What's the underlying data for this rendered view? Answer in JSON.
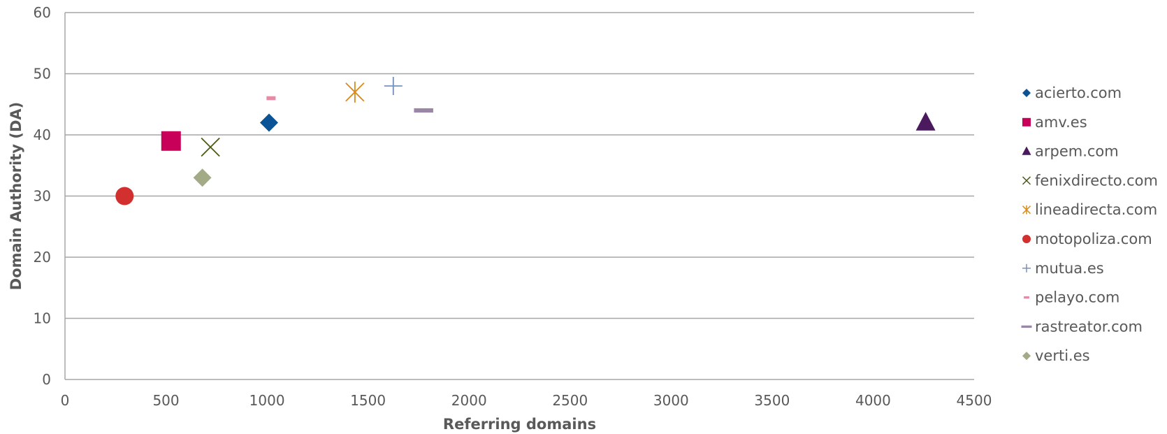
{
  "chart_data": {
    "type": "scatter",
    "title": "",
    "xlabel": "Referring domains",
    "ylabel": "Domain Authority (DA)",
    "xlim": [
      0,
      4500
    ],
    "ylim": [
      0,
      60
    ],
    "xticks": [
      0,
      500,
      1000,
      1500,
      2000,
      2500,
      3000,
      3500,
      4000,
      4500
    ],
    "yticks": [
      0,
      10,
      20,
      30,
      40,
      50,
      60
    ],
    "grid": "horizontal",
    "legend_position": "right",
    "series": [
      {
        "name": "acierto.com",
        "marker": "diamond",
        "color": "#0B5394",
        "x": 1010,
        "y": 42
      },
      {
        "name": "amv.es",
        "marker": "square",
        "color": "#C8005A",
        "x": 525,
        "y": 39
      },
      {
        "name": "arpem.com",
        "marker": "triangle",
        "color": "#4B1A5E",
        "x": 4260,
        "y": 42
      },
      {
        "name": "fenixdirecto.com",
        "marker": "x",
        "color": "#4B5A14",
        "x": 720,
        "y": 38
      },
      {
        "name": "lineadirecta.com",
        "marker": "star",
        "color": "#D98C1A",
        "x": 1435,
        "y": 47
      },
      {
        "name": "motopoliza.com",
        "marker": "circle",
        "color": "#D22F2F",
        "x": 295,
        "y": 30
      },
      {
        "name": "mutua.es",
        "marker": "plus",
        "color": "#7892BE",
        "x": 1625,
        "y": 48
      },
      {
        "name": "pelayo.com",
        "marker": "dash",
        "color": "#E58BA6",
        "x": 1020,
        "y": 46
      },
      {
        "name": "rastreator.com",
        "marker": "bar",
        "color": "#9A86A6",
        "x": 1775,
        "y": 44
      },
      {
        "name": "verti.es",
        "marker": "diamond",
        "color": "#A3AA86",
        "x": 680,
        "y": 33
      }
    ]
  }
}
